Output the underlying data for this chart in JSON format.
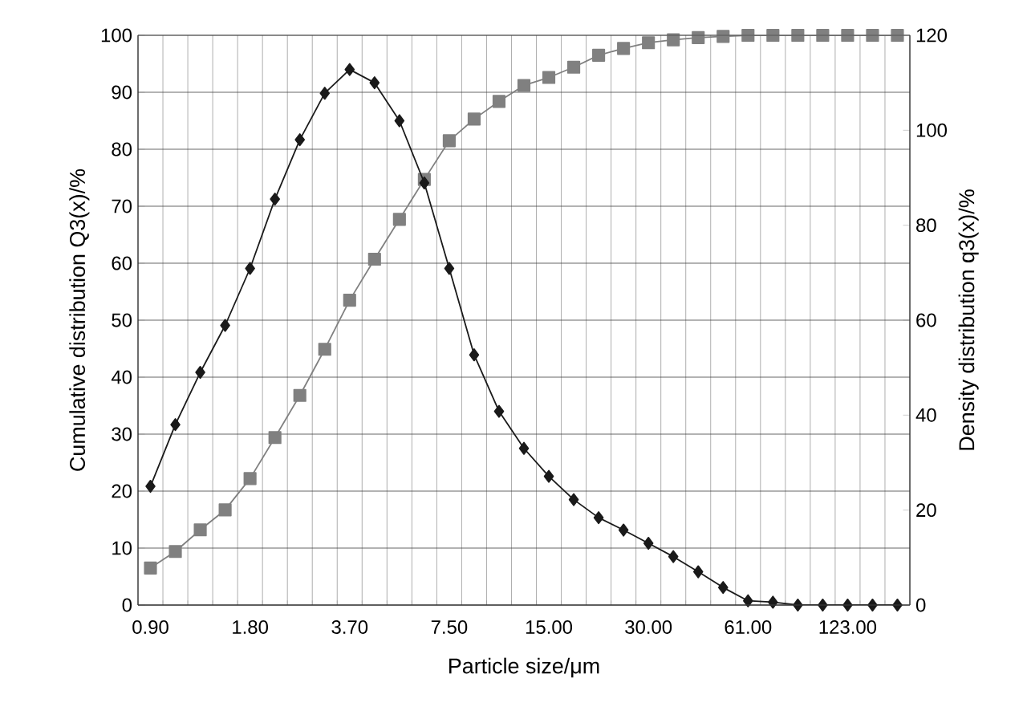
{
  "chart_data": {
    "type": "line",
    "xlabel": "Particle size/μm",
    "ylabel": "Cumulative distribution Q3(x)/%",
    "y2label": "Density distribution q3(x)/%",
    "categories": [
      "0.90",
      null,
      null,
      null,
      "1.80",
      null,
      null,
      null,
      "3.70",
      null,
      null,
      null,
      "7.50",
      null,
      null,
      null,
      "15.00",
      null,
      null,
      null,
      "30.00",
      null,
      null,
      null,
      "61.00",
      null,
      null,
      null,
      "123.00",
      null,
      null
    ],
    "series": [
      {
        "color": "#808080",
        "marker": "square",
        "values": [
          6.5,
          9.4,
          13.2,
          16.7,
          22.2,
          29.4,
          36.8,
          44.9,
          53.5,
          60.7,
          67.7,
          74.7,
          81.5,
          85.3,
          88.4,
          91.2,
          92.6,
          94.4,
          96.5,
          97.7,
          98.7,
          99.2,
          99.6,
          99.8,
          100,
          100,
          100,
          100,
          100,
          100,
          100
        ]
      },
      {
        "color": "#1a1a1a",
        "marker": "diamond",
        "axis": "y2",
        "values": [
          25.0,
          38.0,
          49.0,
          58.9,
          70.9,
          85.5,
          98.0,
          107.8,
          112.8,
          110.0,
          102.0,
          88.9,
          70.9,
          52.7,
          40.8,
          33.0,
          27.1,
          22.2,
          18.4,
          15.8,
          13.0,
          10.2,
          7.0,
          3.7,
          0.9,
          0.6,
          0,
          0,
          0,
          0,
          0
        ]
      }
    ],
    "ylim": [
      0,
      100
    ],
    "yticks": [
      0,
      10,
      20,
      30,
      40,
      50,
      60,
      70,
      80,
      90,
      100
    ],
    "y2lim": [
      0,
      120
    ],
    "y2ticks": [
      0,
      20,
      40,
      60,
      80,
      100,
      120
    ],
    "grid": true,
    "line_style": "solid"
  }
}
